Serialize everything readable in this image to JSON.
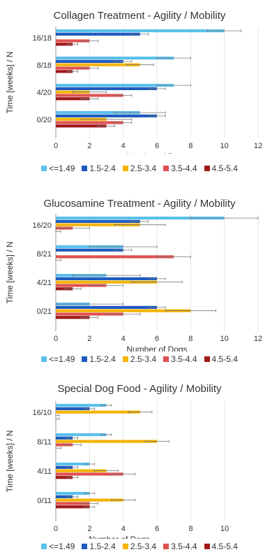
{
  "colors": [
    "#5bc0eb",
    "#1f5bbf",
    "#f4b400",
    "#e05050",
    "#a01818"
  ],
  "chart_data": [
    {
      "type": "bar",
      "orientation": "horizontal",
      "title": "Collagen Treatment - Agility / Mobility",
      "xlabel": "Number of Dogs",
      "ylabel": "Time [weeks]  /  N",
      "xlim": [
        0,
        12
      ],
      "xticks": [
        "0",
        "2",
        "4",
        "6",
        "8",
        "10",
        "12"
      ],
      "categories": [
        "16/18",
        "8/18",
        "4/20",
        "0/20"
      ],
      "legend": [
        "<=1.49",
        "1.5-2.4",
        "2.5-3.4",
        "3.5-4.4",
        "4.5-5.4"
      ],
      "series": [
        {
          "name": "<=1.49",
          "values": [
            10,
            7,
            7,
            5
          ],
          "errors": [
            1,
            1,
            1,
            1.5
          ]
        },
        {
          "name": "1.5-2.4",
          "values": [
            5,
            4,
            6,
            6
          ],
          "errors": [
            0.5,
            0.5,
            0.5,
            0.5
          ]
        },
        {
          "name": "2.5-3.4",
          "values": [
            0,
            5,
            2,
            3
          ],
          "errors": [
            0,
            0.8,
            1,
            1.5
          ]
        },
        {
          "name": "3.5-4.4",
          "values": [
            2,
            2,
            4,
            4
          ],
          "errors": [
            0.5,
            0.5,
            0.5,
            0.5
          ]
        },
        {
          "name": "4.5-5.4",
          "values": [
            1,
            1,
            2,
            3
          ],
          "errors": [
            0.3,
            0.3,
            0.5,
            0.5
          ]
        }
      ]
    },
    {
      "type": "bar",
      "orientation": "horizontal",
      "title": "Glucosamine Treatment - Agility / Mobility",
      "xlabel": "Number of Dogs",
      "ylabel": "Time [weeks]  /  N",
      "xlim": [
        0,
        12
      ],
      "xticks": [
        "0",
        "2",
        "4",
        "6",
        "8",
        "10",
        "12"
      ],
      "categories": [
        "16/20",
        "8/21",
        "4/21",
        "0/21"
      ],
      "legend": [
        "<=1.49",
        "1.5-2.4",
        "2.5-3.4",
        "3.5-4.4",
        "4.5-5.4"
      ],
      "series": [
        {
          "name": "<=1.49",
          "values": [
            10,
            4,
            3,
            2
          ],
          "errors": [
            2,
            2,
            2,
            2
          ]
        },
        {
          "name": "1.5-2.4",
          "values": [
            5,
            4,
            6,
            6
          ],
          "errors": [
            0.5,
            0.5,
            0.5,
            0.5
          ]
        },
        {
          "name": "2.5-3.4",
          "values": [
            5,
            0,
            6,
            8
          ],
          "errors": [
            1.5,
            0,
            1.5,
            1.5
          ]
        },
        {
          "name": "3.5-4.4",
          "values": [
            1,
            7,
            3,
            4
          ],
          "errors": [
            1,
            1,
            1,
            1
          ]
        },
        {
          "name": "4.5-5.4",
          "values": [
            0,
            0,
            1,
            2
          ],
          "errors": [
            0.3,
            0.3,
            0.5,
            0.5
          ]
        }
      ]
    },
    {
      "type": "bar",
      "orientation": "horizontal",
      "title": "Special Dog Food - Agility / Mobility",
      "xlabel": "Number of Dogs",
      "ylabel": "Time [weeks]  /  N",
      "xlim": [
        0,
        10
      ],
      "xticks": [
        "0",
        "2",
        "4",
        "6",
        "8",
        "10"
      ],
      "categories": [
        "16/10",
        "8/11",
        "4/11",
        "0/11"
      ],
      "legend": [
        "<=1.49",
        "1.5-2.4",
        "2.5-3.4",
        "3.5-4.4",
        "4.5-5.4"
      ],
      "series": [
        {
          "name": "<=1.49",
          "values": [
            3,
            3,
            2,
            2
          ],
          "errors": [
            0.3,
            0.3,
            0.3,
            0.3
          ]
        },
        {
          "name": "1.5-2.4",
          "values": [
            2,
            1,
            1,
            1
          ],
          "errors": [
            0.3,
            0.3,
            0.3,
            0.3
          ]
        },
        {
          "name": "2.5-3.4",
          "values": [
            5,
            6,
            3,
            4
          ],
          "errors": [
            0.7,
            0.7,
            0.7,
            0.7
          ]
        },
        {
          "name": "3.5-4.4",
          "values": [
            0,
            1,
            4,
            2
          ],
          "errors": [
            0.2,
            0.5,
            0.7,
            0.5
          ]
        },
        {
          "name": "4.5-5.4",
          "values": [
            0,
            0,
            1,
            2
          ],
          "errors": [
            0.2,
            0.3,
            0.3,
            0.3
          ]
        }
      ]
    }
  ]
}
